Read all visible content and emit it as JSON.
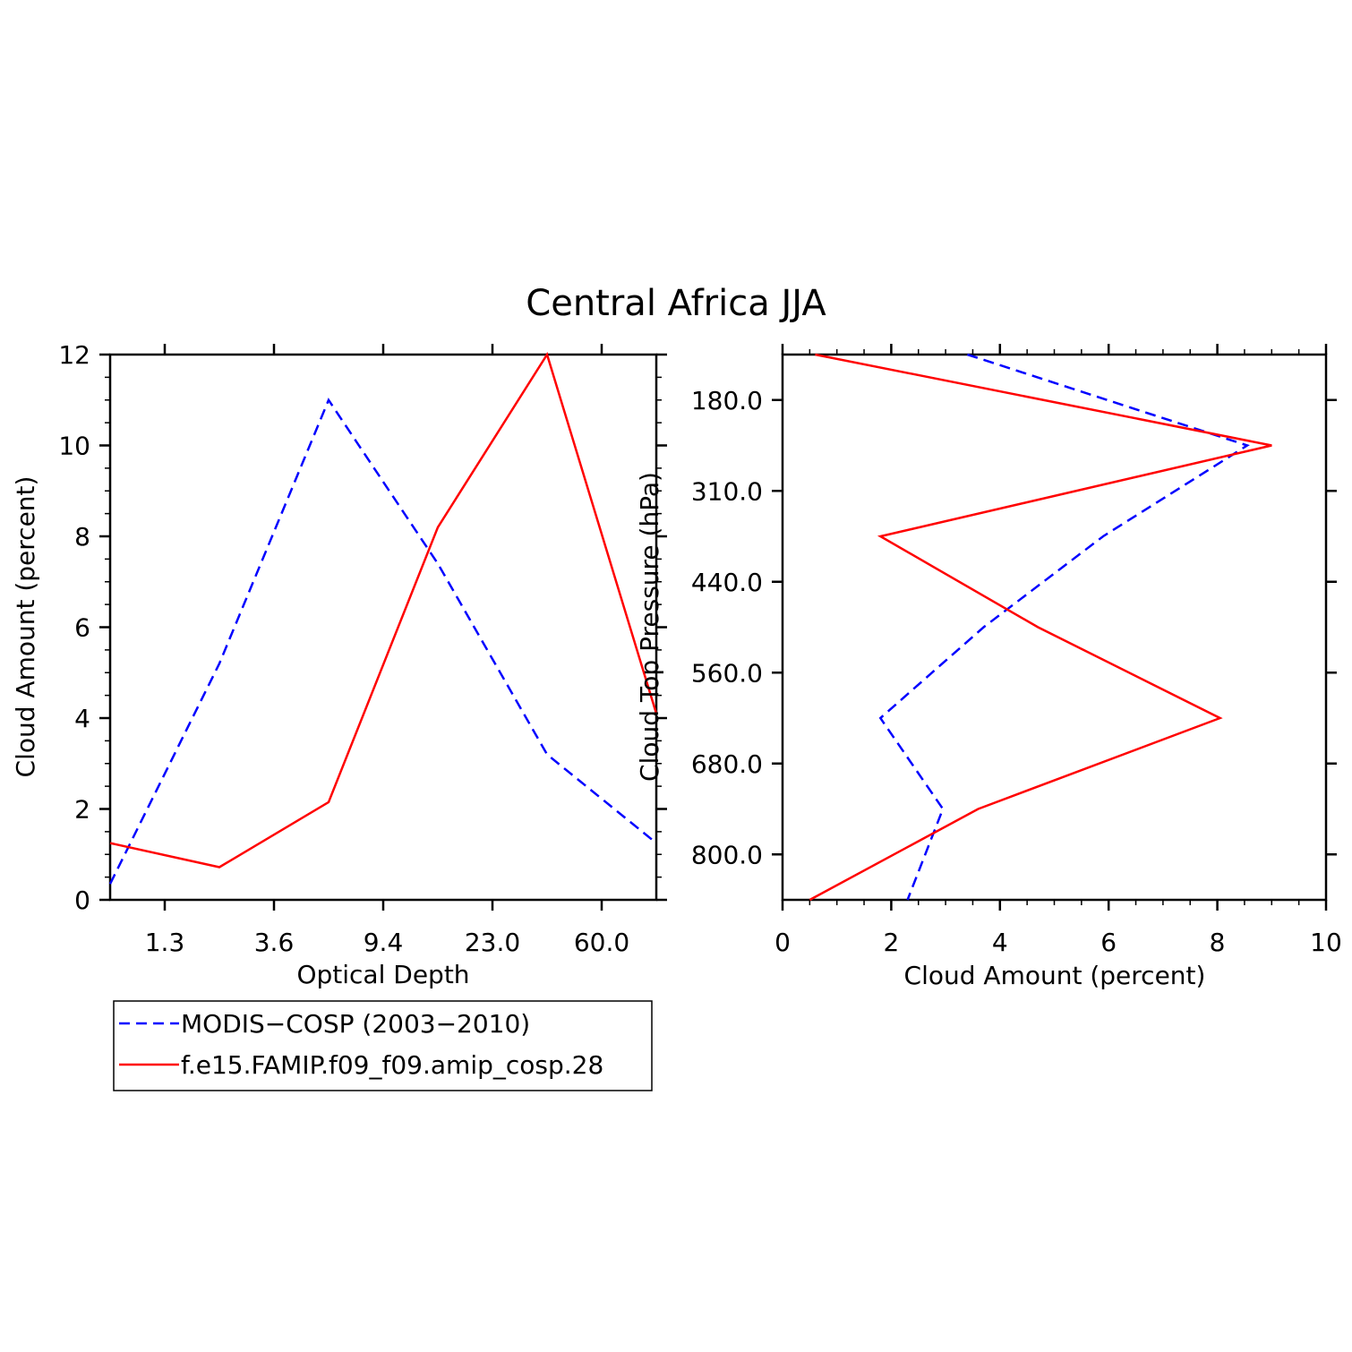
{
  "title": "Central Africa JJA",
  "legend": {
    "entries": [
      {
        "label": "MODIS−COSP (2003−2010)",
        "color": "#0000ff",
        "dash": true
      },
      {
        "label": "f.e15.FAMIP.f09_f09.amip_cosp.28",
        "color": "#ff0000",
        "dash": false
      }
    ]
  },
  "chart_data": [
    {
      "type": "line",
      "xlabel": "Optical Depth",
      "ylabel": "Cloud Amount (percent)",
      "x_tick_labels": [
        "1.3",
        "3.6",
        "9.4",
        "23.0",
        "60.0"
      ],
      "y_ticks": [
        0,
        2,
        4,
        6,
        8,
        10,
        12
      ],
      "ylim": [
        0,
        12
      ],
      "x_bins": 6,
      "grid": false,
      "series": [
        {
          "name": "MODIS−COSP (2003−2010)",
          "color": "#0000ff",
          "dash": true,
          "values": [
            0.35,
            5.2,
            11.0,
            7.4,
            3.2,
            1.25
          ]
        },
        {
          "name": "f.e15.FAMIP.f09_f09.amip_cosp.28",
          "color": "#ff0000",
          "dash": false,
          "values": [
            1.25,
            0.72,
            2.15,
            8.2,
            12.0,
            4.1
          ]
        }
      ]
    },
    {
      "type": "line",
      "xlabel": "Cloud Amount (percent)",
      "ylabel": "Cloud Top Pressure (hPa)",
      "y_tick_labels": [
        "180.0",
        "310.0",
        "440.0",
        "560.0",
        "680.0",
        "800.0"
      ],
      "x_ticks": [
        0,
        2,
        4,
        6,
        8,
        10
      ],
      "xlim": [
        0,
        10
      ],
      "y_bins": 6,
      "grid": false,
      "series": [
        {
          "name": "MODIS−COSP (2003−2010)",
          "color": "#0000ff",
          "dash": true,
          "values": [
            3.4,
            8.55,
            5.9,
            3.7,
            1.8,
            2.95,
            2.3
          ]
        },
        {
          "name": "f.e15.FAMIP.f09_f09.amip_cosp.28",
          "color": "#ff0000",
          "dash": false,
          "values": [
            0.6,
            9.0,
            1.8,
            4.7,
            8.05,
            3.6,
            0.5
          ]
        }
      ]
    }
  ]
}
